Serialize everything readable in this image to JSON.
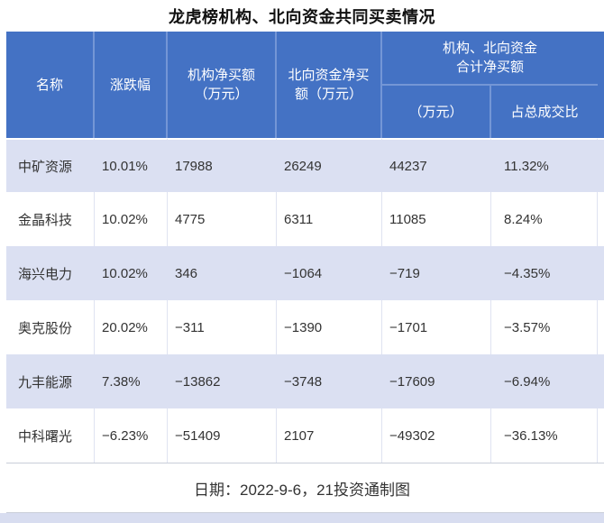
{
  "title": "龙虎榜机构、北向资金共同买卖情况",
  "header": {
    "name": "名称",
    "change": "涨跌幅",
    "inst": "机构净买额\n（万元）",
    "north": "北向资金净买\n额（万元）",
    "group": "机构、北向资金\n合计净买额",
    "amount": "（万元）",
    "ratio": "占总成交比"
  },
  "rows": [
    {
      "name": "中矿资源",
      "change": "10.01%",
      "inst": "17988",
      "north": "26249",
      "total": "44237",
      "ratio": "11.32%"
    },
    {
      "name": "金晶科技",
      "change": "10.02%",
      "inst": "4775",
      "north": "6311",
      "total": "11085",
      "ratio": "8.24%"
    },
    {
      "name": "海兴电力",
      "change": "10.02%",
      "inst": "346",
      "north": "−1064",
      "total": "−719",
      "ratio": "−4.35%"
    },
    {
      "name": "奥克股份",
      "change": "20.02%",
      "inst": "−311",
      "north": "−1390",
      "total": "−1701",
      "ratio": "−3.57%"
    },
    {
      "name": "九丰能源",
      "change": "7.38%",
      "inst": "−13862",
      "north": "−3748",
      "total": "−17609",
      "ratio": "−6.94%"
    },
    {
      "name": "中科曙光",
      "change": "−6.23%",
      "inst": "−51409",
      "north": "2107",
      "total": "−49302",
      "ratio": "−36.13%"
    }
  ],
  "footer": "日期：2022-9-6，21投资通制图",
  "colors": {
    "header_bg": "#4472C4",
    "header_divider": "#7496D6",
    "band_row_bg": "#DBE0F2",
    "white_row_divider": "#DFE3F1",
    "footer_line": "#C9CED9",
    "bottom_strip": "#D8DDF0",
    "text": "#333333"
  },
  "chart_data": {
    "type": "table",
    "title": "龙虎榜机构、北向资金共同买卖情况",
    "columns": [
      "名称",
      "涨跌幅",
      "机构净买额（万元）",
      "北向资金净买额（万元）",
      "机构、北向资金合计净买额（万元）",
      "机构、北向资金合计净买额占总成交比"
    ],
    "rows": [
      [
        "中矿资源",
        "10.01%",
        17988,
        26249,
        44237,
        "11.32%"
      ],
      [
        "金晶科技",
        "10.02%",
        4775,
        6311,
        11085,
        "8.24%"
      ],
      [
        "海兴电力",
        "10.02%",
        346,
        -1064,
        -719,
        "-4.35%"
      ],
      [
        "奥克股份",
        "20.02%",
        -311,
        -1390,
        -1701,
        "-3.57%"
      ],
      [
        "九丰能源",
        "7.38%",
        -13862,
        -3748,
        -17609,
        "-6.94%"
      ],
      [
        "中科曙光",
        "-6.23%",
        -51409,
        2107,
        -49302,
        "-36.13%"
      ]
    ],
    "footnote": "日期：2022-9-6，21投资通制图"
  }
}
